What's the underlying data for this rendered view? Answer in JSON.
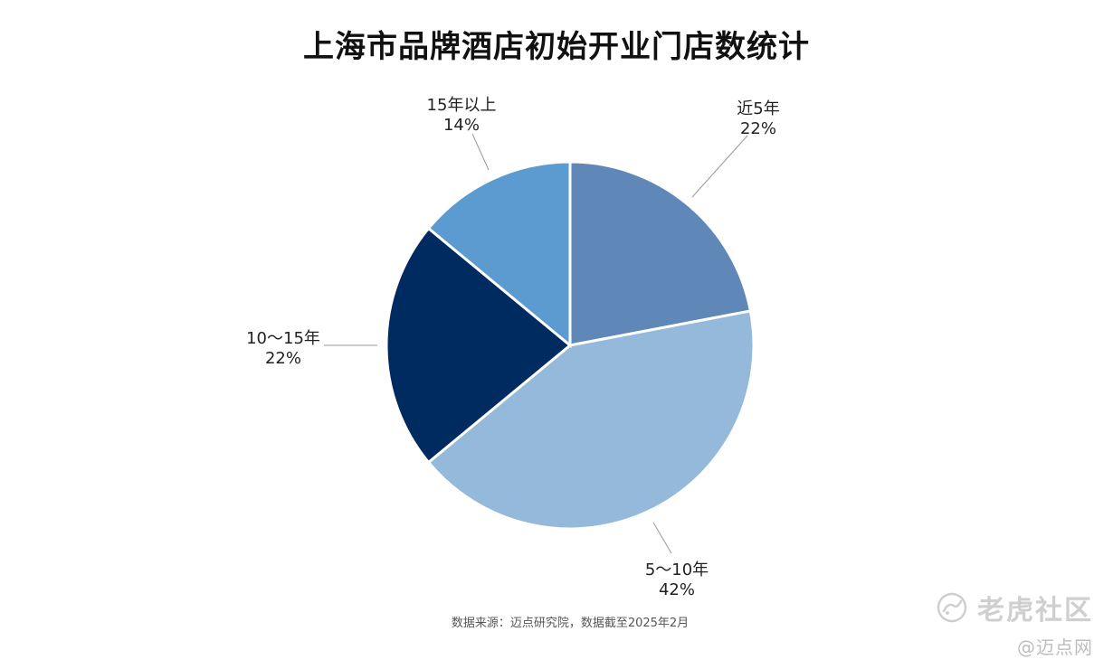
{
  "chart_data": {
    "type": "pie",
    "title": "上海市品牌酒店初始开业门店数统计",
    "slices": [
      {
        "label": "近5年",
        "value": 22,
        "value_label": "22%",
        "color": "#5f87b7"
      },
      {
        "label": "5～10年",
        "value": 42,
        "value_label": "42%",
        "color": "#95b9da"
      },
      {
        "label": "10～15年",
        "value": 22,
        "value_label": "22%",
        "color": "#002b60"
      },
      {
        "label": "15年以上",
        "value": 14,
        "value_label": "14%",
        "color": "#5b9bd0"
      }
    ],
    "start_at": "top",
    "direction": "clockwise",
    "labels_outside": true
  },
  "source": "数据来源：迈点研究院，数据截至2025年2月",
  "watermark": {
    "main": "老虎社区",
    "sub": "@迈点网"
  }
}
